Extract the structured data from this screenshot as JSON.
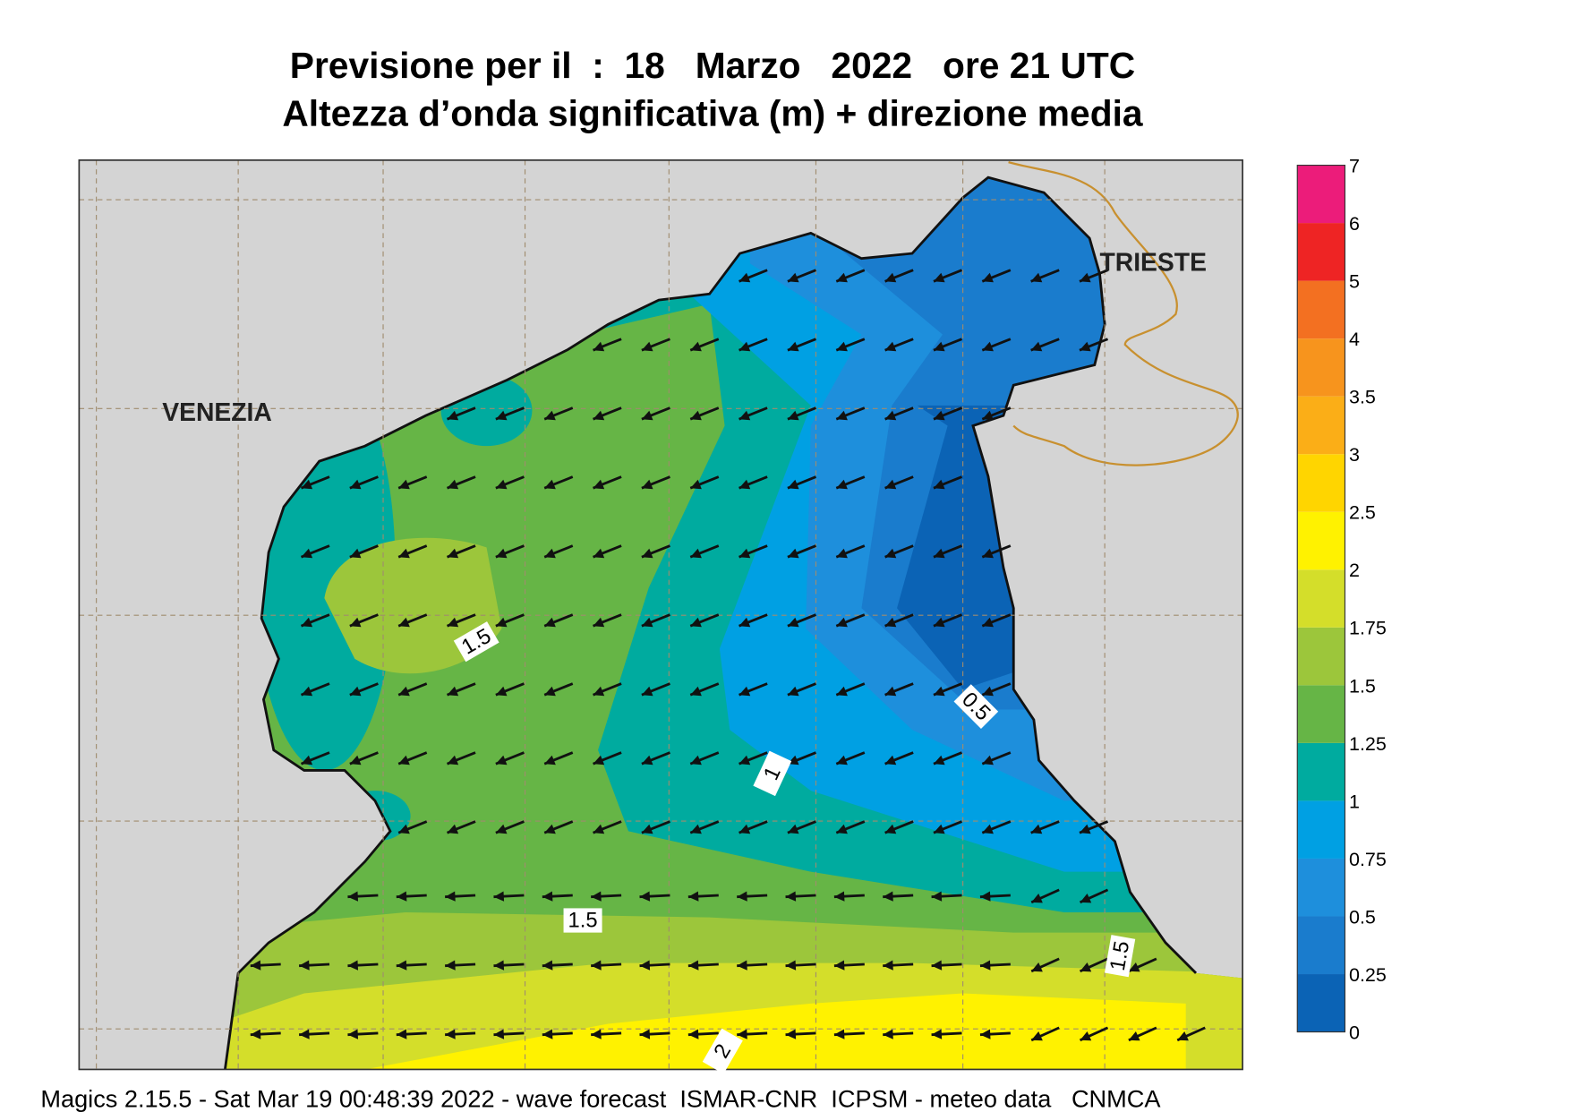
{
  "title": [
    "Previsione per il  :  18   Marzo   2022   ore 21 UTC",
    "Altezza d’onda significativa (m) + direzione media"
  ],
  "places": [
    "VENEZIA",
    "TRIESTE"
  ],
  "contour_labels": [
    1.5,
    0.5,
    1,
    1.5,
    1.5,
    2
  ],
  "colorbar": {
    "ticks": [
      0,
      0.25,
      0.5,
      0.75,
      1,
      1.25,
      1.5,
      1.75,
      2,
      2.5,
      3,
      3.5,
      4,
      5,
      6,
      7
    ],
    "colors": [
      "#0b63b5",
      "#1a7ccd",
      "#1e8fdc",
      "#00a0e3",
      "#00ab9f",
      "#66b546",
      "#9cc63b",
      "#d4de2a",
      "#fff200",
      "#ffd500",
      "#fbae17",
      "#f7941d",
      "#f37021",
      "#ee2424",
      "#ec1c7a"
    ]
  },
  "footer": "Magics 2.15.5 - Sat Mar 19 00:48:39 2022 - wave forecast  ISMAR-CNR  ICPSM - meteo data   CNMCA"
}
